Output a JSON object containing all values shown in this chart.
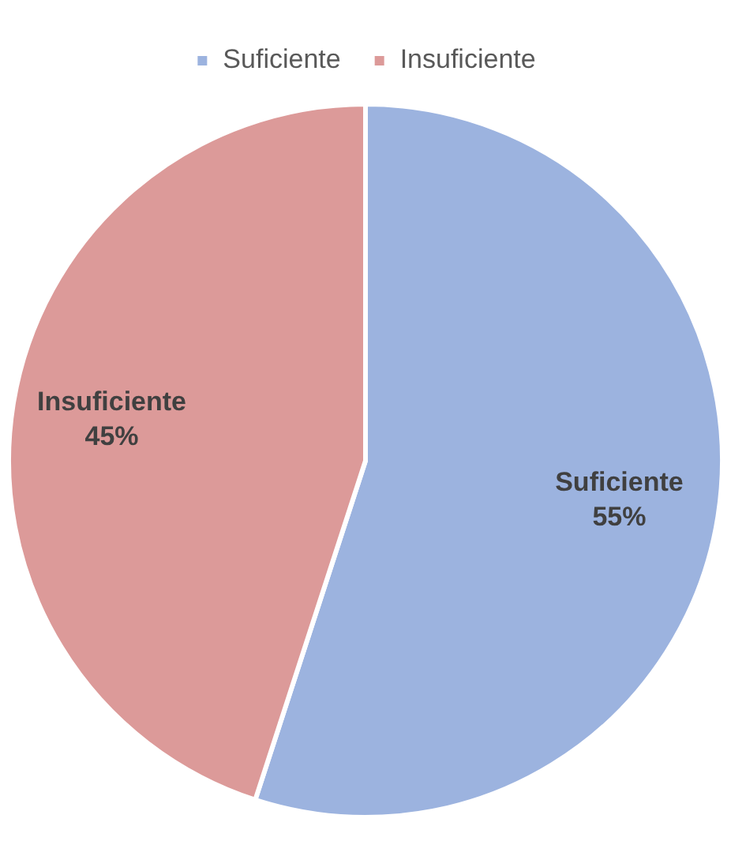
{
  "chart_data": {
    "type": "pie",
    "categories": [
      "Suficiente",
      "Insuficiente"
    ],
    "values": [
      55,
      45
    ],
    "colors": [
      "#9cb3df",
      "#dc9a99"
    ],
    "value_labels": [
      "55%",
      "45%"
    ],
    "legend": "top"
  }
}
